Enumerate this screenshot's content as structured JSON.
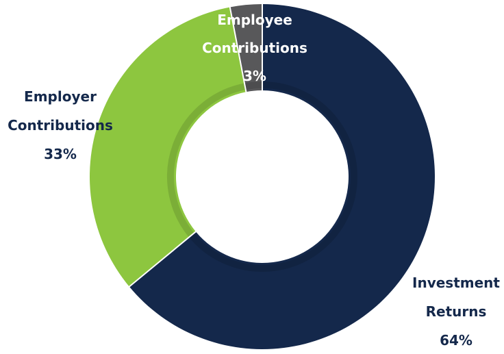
{
  "chart_data": {
    "type": "pie",
    "donut": true,
    "legend": "none",
    "slices": [
      {
        "label_lines": [
          "Investment",
          "Returns"
        ],
        "percent_label": "64%",
        "value": 64,
        "color": "#14284b",
        "label_color": "#14284b",
        "name": "slice-investment-returns"
      },
      {
        "label_lines": [
          "Employer",
          "Contributions"
        ],
        "percent_label": "33%",
        "value": 33,
        "color": "#8dc63f",
        "label_color": "#14284b",
        "name": "slice-employer-contributions"
      },
      {
        "label_lines": [
          "Employee",
          "Contributions"
        ],
        "percent_label": "3%",
        "value": 3,
        "color": "#58585a",
        "label_color": "#ffffff",
        "name": "slice-employee-contributions"
      }
    ]
  }
}
